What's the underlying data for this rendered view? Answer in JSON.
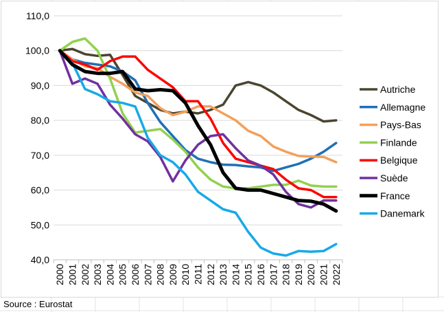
{
  "source_note": "Source : Eurostat",
  "chart_data": {
    "type": "line",
    "x": [
      "2000",
      "2001",
      "2002",
      "2003",
      "2004",
      "2005",
      "2006",
      "2007",
      "2008",
      "2009",
      "2010",
      "2011",
      "2012",
      "2013",
      "2014",
      "2015",
      "2016",
      "2017",
      "2018",
      "2019",
      "2020",
      "2021",
      "2022"
    ],
    "ylim": [
      40,
      110
    ],
    "yticks": [
      "40,0",
      "50,0",
      "60,0",
      "70,0",
      "80,0",
      "90,0",
      "100,0",
      "110,0"
    ],
    "grid": "horizontal",
    "legend_position": "right",
    "series": [
      {
        "name": "Autriche",
        "color": "#4a4530",
        "width": 3.5,
        "values": [
          100,
          100.5,
          99,
          98.5,
          98.8,
          93,
          87,
          85,
          83,
          82,
          82.5,
          82,
          83,
          84.5,
          90,
          91,
          90,
          88,
          85.5,
          83,
          81.5,
          79.7,
          80
        ]
      },
      {
        "name": "Allemagne",
        "color": "#1f6fb5",
        "width": 3.5,
        "values": [
          100,
          97.5,
          96.5,
          96,
          95.5,
          94,
          91.5,
          85,
          79.5,
          75.5,
          71.5,
          69,
          68,
          67.3,
          67.2,
          66.8,
          66.5,
          65.5,
          66.5,
          67.5,
          69,
          71,
          73.5
        ]
      },
      {
        "name": "Pays-Bas",
        "color": "#f2a05a",
        "width": 3.5,
        "values": [
          100,
          97.5,
          95.5,
          95,
          92.5,
          90.5,
          88,
          87,
          83.5,
          81.5,
          82.5,
          84,
          84,
          82,
          80,
          77,
          75.5,
          72.5,
          71,
          69.8,
          69.6,
          69.5,
          68
        ]
      },
      {
        "name": "Finlande",
        "color": "#92d050",
        "width": 3.5,
        "values": [
          100,
          102.5,
          103.5,
          100,
          92,
          82,
          76.5,
          77,
          77.5,
          74.5,
          71,
          66.5,
          63,
          61,
          60.5,
          60.5,
          61,
          61.5,
          61.5,
          62.7,
          61.3,
          61,
          61
        ]
      },
      {
        "name": "Belgique",
        "color": "#ff0000",
        "width": 3.5,
        "values": [
          100,
          97,
          96,
          94.5,
          97,
          98.3,
          98.3,
          94.5,
          92,
          89.5,
          85.5,
          85.5,
          80.5,
          73.5,
          69,
          68,
          67,
          66,
          63,
          60.5,
          60,
          58,
          58
        ]
      },
      {
        "name": "Suède",
        "color": "#7030a0",
        "width": 3.5,
        "values": [
          100,
          90.5,
          92,
          90.5,
          84.5,
          80.5,
          76,
          74,
          69.5,
          62.5,
          68.5,
          73,
          75.5,
          76,
          72,
          68.5,
          67,
          64.5,
          59.5,
          56,
          55,
          57,
          57
        ]
      },
      {
        "name": "France",
        "color": "#000000",
        "width": 5,
        "values": [
          100,
          96,
          94,
          93.5,
          93.5,
          94,
          89,
          88.5,
          88.8,
          88.5,
          85,
          78.5,
          73,
          65,
          60.5,
          60,
          60,
          59,
          58,
          57,
          56.8,
          56,
          54
        ]
      },
      {
        "name": "Danemark",
        "color": "#17a9e8",
        "width": 3.5,
        "values": [
          100,
          96.5,
          89,
          87.5,
          85.5,
          85,
          84,
          75,
          70,
          68,
          64.5,
          59.5,
          57,
          54.5,
          53.5,
          48,
          43.5,
          41.8,
          41.2,
          42.5,
          42.3,
          42.5,
          44.5
        ]
      }
    ]
  }
}
